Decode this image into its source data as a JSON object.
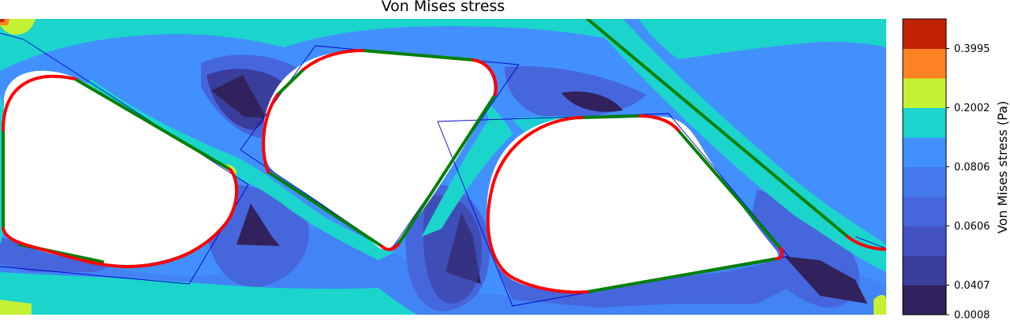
{
  "chart_data": {
    "type": "heatmap",
    "title": "Von Mises stress",
    "colorbar": {
      "label": "Von Mises stress (Pa)",
      "ticks": [
        "0.3995",
        "0.2002",
        "0.0806",
        "0.0606",
        "0.0407",
        "0.0008"
      ],
      "levels": [
        {
          "color": "#31215c"
        },
        {
          "color": "#3a3d9c"
        },
        {
          "color": "#4452c2"
        },
        {
          "color": "#4666dc"
        },
        {
          "color": "#4479ee"
        },
        {
          "color": "#4290fd"
        },
        {
          "color": "#1bd4cc"
        },
        {
          "color": "#c4f133"
        },
        {
          "color": "#fd8224"
        },
        {
          "color": "#c22302"
        }
      ]
    },
    "field_regions": [
      {
        "name": "background-field",
        "level": 4
      },
      {
        "name": "low-stress-pocket-1",
        "level": 1
      },
      {
        "name": "low-stress-pocket-2",
        "level": 0
      },
      {
        "name": "low-stress-pocket-3",
        "level": 0
      },
      {
        "name": "low-stress-pocket-4",
        "level": 0
      },
      {
        "name": "low-stress-pocket-5",
        "level": 0
      },
      {
        "name": "low-stress-pocket-6",
        "level": 0
      },
      {
        "name": "high-stress-band-top",
        "level": 6
      },
      {
        "name": "high-stress-band-bottom",
        "level": 6
      },
      {
        "name": "high-stress-diagonal",
        "level": 6
      }
    ],
    "outline_colors": {
      "fitted_edges": "#008000",
      "fillets": "#ff0000",
      "design_polygon": "#0000cc"
    }
  }
}
